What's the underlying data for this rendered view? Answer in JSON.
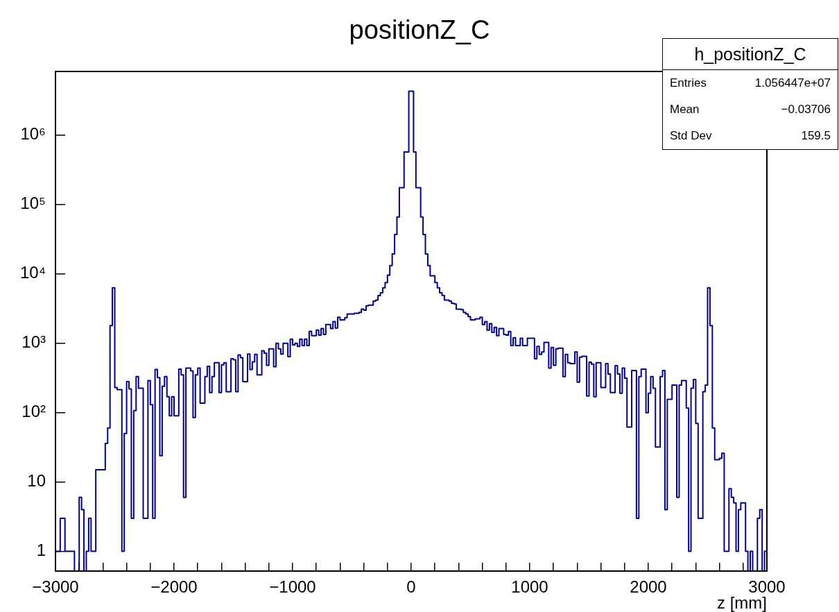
{
  "chart_data": {
    "type": "histogram",
    "title": "positionZ_C",
    "xlabel": "z [mm]",
    "color": "#000099",
    "log": true,
    "annotations": [
      "h_positionZ_C",
      "Entries",
      "1.056447e+07",
      "Mean",
      "−0.03706",
      "Std Dev",
      "159.5"
    ],
    "xlim": [
      -3000,
      3000
    ],
    "ylim": [
      0.52,
      8300000
    ],
    "xticks": [
      {
        "value": -3000,
        "label": "−3000"
      },
      {
        "value": -2800,
        "label": null
      },
      {
        "value": -2600,
        "label": null
      },
      {
        "value": -2400,
        "label": null
      },
      {
        "value": -2200,
        "label": null
      },
      {
        "value": -2000,
        "label": "−2000"
      },
      {
        "value": -1800,
        "label": null
      },
      {
        "value": -1600,
        "label": null
      },
      {
        "value": -1400,
        "label": null
      },
      {
        "value": -1200,
        "label": null
      },
      {
        "value": -1000,
        "label": "−1000"
      },
      {
        "value": -800,
        "label": null
      },
      {
        "value": -600,
        "label": null
      },
      {
        "value": -400,
        "label": null
      },
      {
        "value": -200,
        "label": null
      },
      0,
      {
        "value": 200,
        "label": null
      },
      {
        "value": 400,
        "label": null
      },
      {
        "value": 600,
        "label": null
      },
      {
        "value": 800,
        "label": null
      },
      1000,
      {
        "value": 1200,
        "label": null
      },
      {
        "value": 1400,
        "label": null
      },
      {
        "value": 1600,
        "label": null
      },
      {
        "value": 1800,
        "label": null
      },
      2000,
      {
        "value": 2200,
        "label": null
      },
      {
        "value": 2400,
        "label": null
      },
      {
        "value": 2600,
        "label": null
      },
      {
        "value": 2800,
        "label": null
      },
      3000
    ],
    "yticks": [
      1,
      10,
      {
        "value": 100,
        "label": "10²"
      },
      {
        "value": 1000,
        "label": "10³"
      },
      {
        "value": 10000,
        "label": "10⁴"
      },
      {
        "value": 100000,
        "label": "10⁵"
      },
      {
        "value": 1000000,
        "label": "10⁶"
      }
    ],
    "bins": [
      -3000,
      -2980,
      -2960,
      -2940,
      -2920,
      -2900,
      -2880,
      -2860,
      -2840,
      -2820,
      -2800,
      -2780,
      -2760,
      -2740,
      -2720,
      -2700,
      -2680,
      -2660,
      -2640,
      -2620,
      -2600,
      -2580,
      -2560,
      -2540,
      -2520,
      -2500,
      -2480,
      -2460,
      -2440,
      -2420,
      -2400,
      -2380,
      -2360,
      -2340,
      -2320,
      -2300,
      -2280,
      -2260,
      -2240,
      -2220,
      -2200,
      -2180,
      -2160,
      -2140,
      -2120,
      -2100,
      -2080,
      -2060,
      -2040,
      -2020,
      -2000,
      -1980,
      -1960,
      -1940,
      -1920,
      -1900,
      -1880,
      -1860,
      -1840,
      -1820,
      -1800,
      -1780,
      -1760,
      -1740,
      -1720,
      -1700,
      -1680,
      -1660,
      -1640,
      -1620,
      -1600,
      -1580,
      -1560,
      -1540,
      -1520,
      -1500,
      -1480,
      -1460,
      -1440,
      -1420,
      -1400,
      -1380,
      -1360,
      -1340,
      -1320,
      -1300,
      -1280,
      -1260,
      -1240,
      -1220,
      -1200,
      -1180,
      -1160,
      -1140,
      -1120,
      -1100,
      -1080,
      -1060,
      -1040,
      -1020,
      -1000,
      -980,
      -960,
      -940,
      -920,
      -900,
      -880,
      -860,
      -840,
      -820,
      -800,
      -780,
      -760,
      -740,
      -720,
      -700,
      -680,
      -660,
      -640,
      -620,
      -600,
      -580,
      -560,
      -540,
      -520,
      -500,
      -480,
      -460,
      -440,
      -420,
      -400,
      -380,
      -360,
      -340,
      -320,
      -300,
      -280,
      -260,
      -240,
      -220,
      -200,
      -180,
      -160,
      -140,
      -120,
      -100,
      -80,
      -60,
      -40,
      -20,
      0,
      20,
      40,
      60,
      80,
      100,
      120,
      140,
      160,
      180,
      200,
      220,
      240,
      260,
      280,
      300,
      320,
      340,
      360,
      380,
      400,
      420,
      440,
      460,
      480,
      500,
      520,
      540,
      560,
      580,
      600,
      620,
      640,
      660,
      680,
      700,
      720,
      740,
      760,
      780,
      800,
      820,
      840,
      860,
      880,
      900,
      920,
      940,
      960,
      980,
      1000,
      1020,
      1040,
      1060,
      1080,
      1100,
      1120,
      1140,
      1160,
      1180,
      1200,
      1220,
      1240,
      1260,
      1280,
      1300,
      1320,
      1340,
      1360,
      1380,
      1400,
      1420,
      1440,
      1460,
      1480,
      1500,
      1520,
      1540,
      1560,
      1580,
      1600,
      1620,
      1640,
      1660,
      1680,
      1700,
      1720,
      1740,
      1760,
      1780,
      1800,
      1820,
      1840,
      1860,
      1880,
      1900,
      1920,
      1940,
      1960,
      1980,
      2000,
      2020,
      2040,
      2060,
      2080,
      2100,
      2120,
      2140,
      2160,
      2180,
      2200,
      2220,
      2240,
      2260,
      2280,
      2300,
      2320,
      2340,
      2360,
      2380,
      2400,
      2420,
      2440,
      2460,
      2480,
      2500,
      2520,
      2540,
      2560,
      2580,
      2600,
      2620,
      2640,
      2660,
      2680,
      2700,
      2720,
      2740,
      2760,
      2780,
      2800,
      2820,
      2840,
      2860,
      2880,
      2900,
      2920,
      2940,
      2960,
      2980,
      3000
    ],
    "values": [
      1,
      1,
      3,
      3,
      1,
      1,
      1,
      1,
      null,
      null,
      6,
      4,
      null,
      1,
      3,
      1,
      1,
      15,
      15,
      15,
      15,
      36,
      60,
      1800,
      6300,
      230,
      215,
      215,
      1,
      50,
      280,
      220,
      3,
      107,
      330,
      225,
      225,
      3,
      3,
      290,
      130,
      3,
      420,
      320,
      24,
      240,
      330,
      170,
      90,
      170,
      90,
      90,
      425,
      350,
      6,
      440,
      440,
      400,
      85,
      350,
      440,
      137,
      137,
      330,
      465,
      195,
      330,
      525,
      525,
      195,
      490,
      525,
      200,
      200,
      600,
      580,
      200,
      680,
      620,
      280,
      280,
      700,
      420,
      540,
      690,
      350,
      350,
      780,
      720,
      480,
      830,
      830,
      460,
      1000,
      830,
      700,
      1000,
      1000,
      640,
      1150,
      950,
      1000,
      900,
      1150,
      930,
      1150,
      930,
      1490,
      1290,
      1290,
      1550,
      1310,
      1630,
      1340,
      1860,
      1860,
      1630,
      2050,
      1660,
      2370,
      2180,
      2180,
      2350,
      2640,
      2640,
      2640,
      2700,
      2700,
      2790,
      3110,
      3000,
      3460,
      3540,
      3540,
      4060,
      4200,
      4880,
      5330,
      6300,
      7500,
      9600,
      13200,
      19400,
      37000,
      66000,
      175000,
      175000,
      575000,
      575000,
      4300000,
      4300000,
      575000,
      175000,
      175000,
      66000,
      37000,
      19400,
      13200,
      9400,
      9400,
      7500,
      6300,
      5330,
      4900,
      4200,
      4200,
      4050,
      3780,
      3700,
      3110,
      3110,
      3050,
      2790,
      2640,
      2430,
      2180,
      2180,
      2250,
      2250,
      2370,
      1860,
      2050,
      1550,
      1920,
      1440,
      1700,
      1290,
      1630,
      1630,
      1340,
      1310,
      1480,
      930,
      1200,
      930,
      930,
      1180,
      930,
      930,
      1180,
      1180,
      1180,
      600,
      900,
      690,
      750,
      1030,
      1030,
      440,
      870,
      480,
      830,
      850,
      850,
      330,
      690,
      525,
      510,
      510,
      750,
      275,
      630,
      650,
      650,
      174,
      535,
      500,
      170,
      525,
      525,
      230,
      230,
      510,
      360,
      195,
      195,
      475,
      360,
      190,
      440,
      315,
      62,
      62,
      405,
      405,
      3,
      330,
      425,
      425,
      100,
      190,
      330,
      225,
      32,
      32,
      330,
      405,
      4,
      156,
      156,
      250,
      250,
      6,
      250,
      290,
      290,
      117,
      1,
      225,
      300,
      70,
      3,
      3,
      200,
      250,
      6300,
      1800,
      60,
      21,
      21,
      22,
      26,
      1,
      1,
      8,
      6,
      5,
      1,
      4,
      5,
      5,
      1,
      null,
      1,
      null,
      null,
      3,
      4,
      null,
      1
    ]
  }
}
